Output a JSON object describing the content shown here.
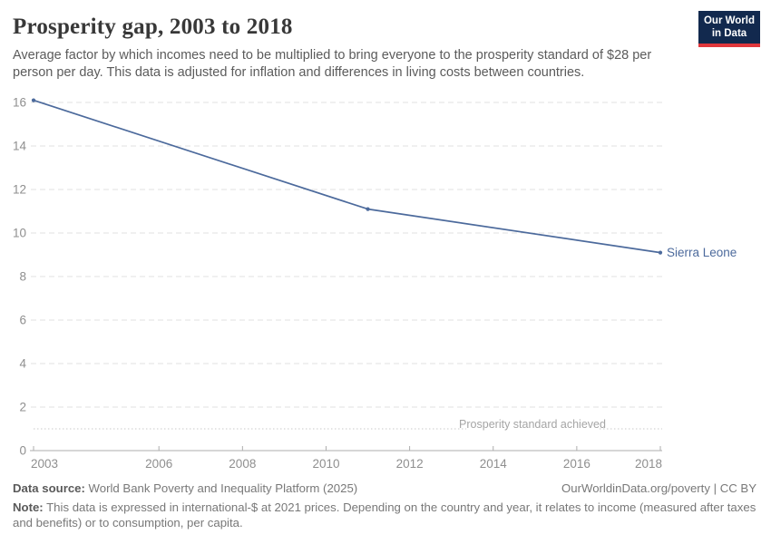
{
  "header": {
    "title": "Prosperity gap, 2003 to 2018",
    "subtitle": "Average factor by which incomes need to be multiplied to bring everyone to the prosperity standard of $28 per person per day. This data is adjusted for inflation and differences in living costs between countries.",
    "logo": {
      "line1": "Our World",
      "line2": "in Data",
      "bg_color": "#12294e",
      "accent_color": "#e0373c"
    }
  },
  "chart_data": {
    "type": "line",
    "title": "Prosperity gap, 2003 to 2018",
    "series": [
      {
        "name": "Sierra Leone",
        "color": "#4C6A9C",
        "x": [
          2003,
          2011,
          2018
        ],
        "values": [
          16.1,
          11.1,
          9.1
        ]
      }
    ],
    "x_ticks": [
      2003,
      2006,
      2008,
      2010,
      2012,
      2014,
      2016,
      2018
    ],
    "y_ticks": [
      0,
      2,
      4,
      6,
      8,
      10,
      12,
      14,
      16
    ],
    "xlim": [
      2003,
      2018
    ],
    "ylim": [
      0,
      16
    ],
    "grid": "horizontal-dashed",
    "legend_position": "end-of-line-label",
    "annotation": {
      "label": "Prosperity standard achieved",
      "y": 1
    },
    "colors": {
      "grid": "#e2e2e2",
      "axis": "#adadad",
      "tick_label": "#8f8f8f",
      "annotation_text": "#a5a5a5",
      "annotation_line": "#c9c9c9"
    }
  },
  "footer": {
    "data_source_label": "Data source:",
    "data_source": " World Bank Poverty and Inequality Platform (2025)",
    "link": "OurWorldinData.org/poverty | CC BY",
    "note_label": "Note:",
    "note": " This data is expressed in international-$ at 2021 prices. Depending on the country and year, it relates to income (measured after taxes and benefits) or to consumption, per capita."
  }
}
